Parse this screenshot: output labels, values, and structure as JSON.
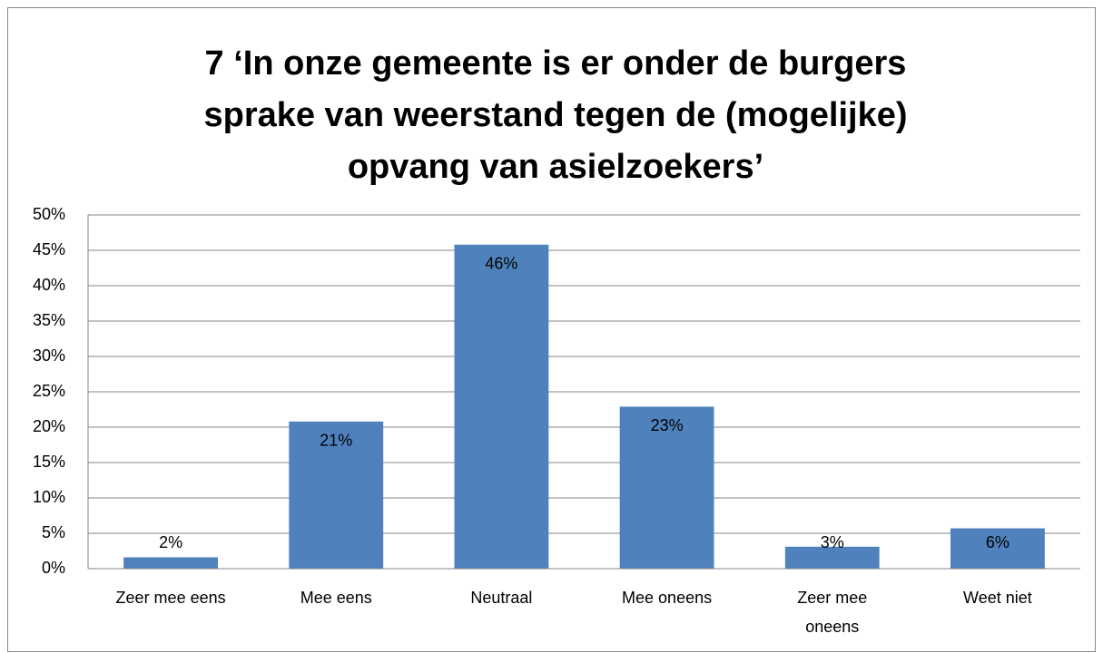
{
  "chart_data": {
    "type": "bar",
    "title": [
      "7 ‘In onze gemeente is er onder de burgers",
      "sprake van weerstand tegen de (mogelijke)",
      "opvang van asielzoekers’"
    ],
    "categories": [
      "Zeer mee eens",
      "Mee eens",
      "Neutraal",
      "Mee oneens",
      "Zeer mee oneens",
      "Weet niet"
    ],
    "values": [
      1.6,
      20.8,
      45.8,
      22.9,
      3.1,
      5.7
    ],
    "value_labels": [
      "2%",
      "21%",
      "46%",
      "23%",
      "3%",
      "6%"
    ],
    "color": "#4f81bd",
    "ylim": [
      0,
      50
    ],
    "yticks": [
      {
        "value": 0,
        "label": "0%"
      },
      {
        "value": 5,
        "label": "5%"
      },
      {
        "value": 10,
        "label": "10%"
      },
      {
        "value": 15,
        "label": "15%"
      },
      {
        "value": 20,
        "label": "20%"
      },
      {
        "value": 25,
        "label": "25%"
      },
      {
        "value": 30,
        "label": "30%"
      },
      {
        "value": 35,
        "label": "35%"
      },
      {
        "value": 40,
        "label": "40%"
      },
      {
        "value": 45,
        "label": "45%"
      },
      {
        "value": 50,
        "label": "50%"
      }
    ],
    "grid": true
  }
}
